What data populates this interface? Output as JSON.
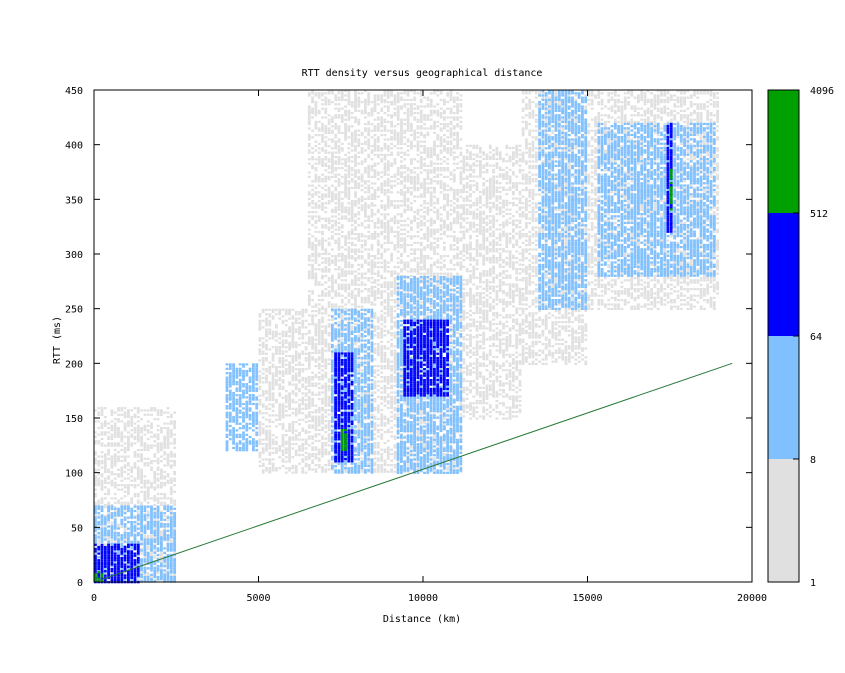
{
  "chart_data": {
    "type": "heatmap",
    "title": "RTT density versus geographical distance",
    "xlabel": "Distance (km)",
    "ylabel": "RTT (ms)",
    "xlim": [
      0,
      20000
    ],
    "ylim": [
      0,
      450
    ],
    "x_ticks": [
      "0",
      "5000",
      "10000",
      "15000",
      "20000"
    ],
    "y_ticks": [
      "0",
      "50",
      "100",
      "150",
      "200",
      "250",
      "300",
      "350",
      "400",
      "450"
    ],
    "colorbar": {
      "ticks": [
        "1",
        "8",
        "64",
        "512",
        "4096"
      ],
      "bands": [
        {
          "from": 1,
          "to": 8,
          "color": "#e0e0e0"
        },
        {
          "from": 8,
          "to": 64,
          "color": "#80c0ff"
        },
        {
          "from": 64,
          "to": 512,
          "color": "#0000ff"
        },
        {
          "from": 512,
          "to": 4096,
          "color": "#00a000"
        }
      ]
    },
    "reference_line": {
      "color": "#2a7a3a",
      "points": [
        [
          0,
          0
        ],
        [
          19400,
          200
        ]
      ]
    },
    "density_regions": [
      {
        "x": [
          0,
          2500
        ],
        "y": [
          0,
          160
        ],
        "level": 1
      },
      {
        "x": [
          0,
          2500
        ],
        "y": [
          0,
          70
        ],
        "level": 2
      },
      {
        "x": [
          0,
          1400
        ],
        "y": [
          0,
          35
        ],
        "level": 3
      },
      {
        "x": [
          0,
          300
        ],
        "y": [
          0,
          10
        ],
        "level": 4
      },
      {
        "x": [
          4000,
          5000
        ],
        "y": [
          120,
          200
        ],
        "level": 2
      },
      {
        "x": [
          5000,
          6500
        ],
        "y": [
          100,
          250
        ],
        "level": 1
      },
      {
        "x": [
          6500,
          8500
        ],
        "y": [
          100,
          450
        ],
        "level": 1
      },
      {
        "x": [
          7200,
          8500
        ],
        "y": [
          100,
          250
        ],
        "level": 2
      },
      {
        "x": [
          7300,
          7900
        ],
        "y": [
          110,
          210
        ],
        "level": 3
      },
      {
        "x": [
          7500,
          7700
        ],
        "y": [
          120,
          140
        ],
        "level": 4
      },
      {
        "x": [
          8500,
          11200
        ],
        "y": [
          100,
          450
        ],
        "level": 1
      },
      {
        "x": [
          9200,
          11200
        ],
        "y": [
          100,
          280
        ],
        "level": 2
      },
      {
        "x": [
          9400,
          10800
        ],
        "y": [
          170,
          240
        ],
        "level": 3
      },
      {
        "x": [
          11200,
          13000
        ],
        "y": [
          150,
          400
        ],
        "level": 1
      },
      {
        "x": [
          13000,
          15000
        ],
        "y": [
          200,
          450
        ],
        "level": 1
      },
      {
        "x": [
          13500,
          15000
        ],
        "y": [
          250,
          450
        ],
        "level": 2
      },
      {
        "x": [
          15000,
          19000
        ],
        "y": [
          250,
          450
        ],
        "level": 1
      },
      {
        "x": [
          15300,
          18900
        ],
        "y": [
          280,
          420
        ],
        "level": 2
      },
      {
        "x": [
          17400,
          17600
        ],
        "y": [
          320,
          420
        ],
        "level": 3
      },
      {
        "x": [
          17500,
          17600
        ],
        "y": [
          340,
          380
        ],
        "level": 4
      }
    ]
  }
}
